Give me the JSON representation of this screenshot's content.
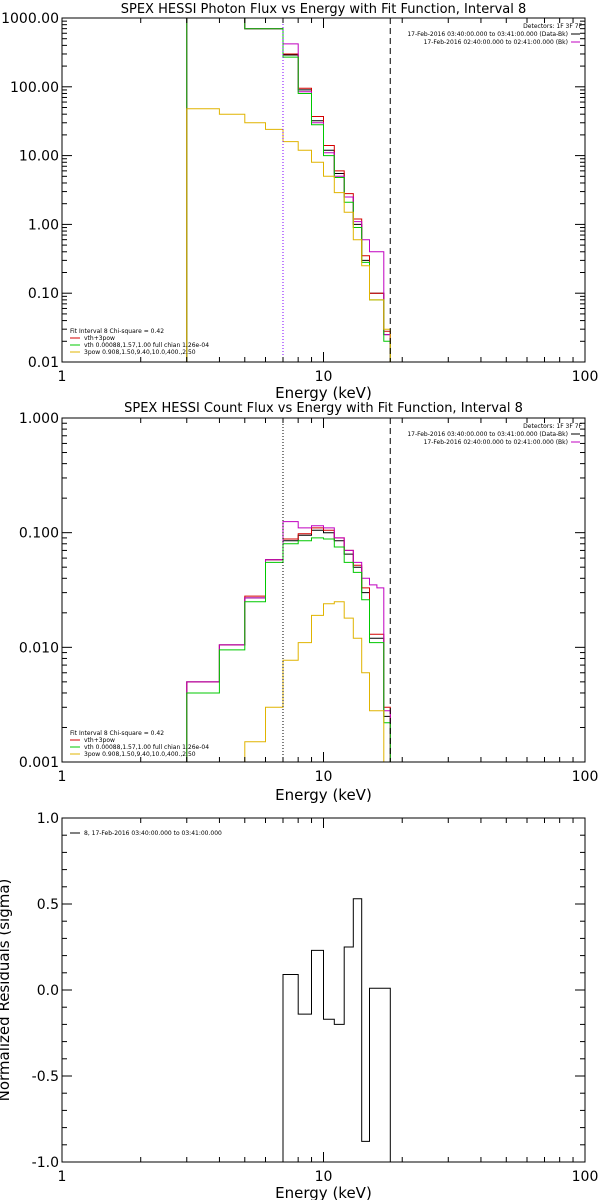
{
  "chart_data": [
    {
      "type": "line",
      "title": "SPEX HESSI Photon Flux vs Energy with Fit Function, Interval 8",
      "xlabel": "Energy (keV)",
      "ylabel": "",
      "xscale": "log",
      "yscale": "log",
      "xlim": [
        1,
        100
      ],
      "ylim": [
        0.01,
        1000
      ],
      "xticks": [
        1,
        10,
        100
      ],
      "xticklabels": [
        "1",
        "10",
        "100"
      ],
      "yticks": [
        0.01,
        0.1,
        1,
        10,
        100,
        1000
      ],
      "yticklabels": [
        "0.01",
        "0.10",
        "1.00",
        "10.00",
        "100.00",
        "1000.00"
      ],
      "header_lines": [
        "Detectors: 1F 3F 7F",
        "17-Feb-2016 03:40:00.000 to 03:41:00.000 (Data-Bk)",
        "17-Feb-2016 02:40:00.000 to 02:41:00.000 (Bk)"
      ],
      "legend_lines": [
        "Fit Interval 8   Chi-square = 0.42",
        "vth+3pow",
        "vth 0.00088,1.57,1.00  full chian 1.26e-04",
        "3pow 0.908,1.50,9.40,10.0,400.,2.50"
      ],
      "legend_colors": [
        "#000000",
        "#d40000",
        "#00c800",
        "#e0b400"
      ],
      "markers": [
        {
          "x": 7.0,
          "style": "dotted",
          "color": "#8000ff"
        },
        {
          "x": 18.0,
          "style": "dashed",
          "color": "#000000"
        }
      ],
      "series": [
        {
          "color": "#000000",
          "edges": [
            3,
            4,
            5,
            6,
            7,
            8,
            9,
            10,
            11,
            12,
            13,
            14,
            15,
            16,
            17,
            18,
            19,
            20
          ],
          "values": [
            1000,
            1000,
            700,
            700,
            290,
            90,
            32,
            12,
            5.5,
            2.5,
            1.0,
            0.3,
            0.1,
            0.1,
            0.025,
            0.01,
            0.01
          ]
        },
        {
          "color": "#d40000",
          "edges": [
            3,
            4,
            5,
            6,
            7,
            8,
            9,
            10,
            11,
            12,
            13,
            14,
            15,
            16,
            17,
            18,
            19,
            20
          ],
          "values": [
            1000,
            1000,
            700,
            700,
            300,
            95,
            37,
            14,
            6.0,
            2.8,
            1.2,
            0.35,
            0.1,
            0.1,
            0.028,
            0.01,
            0.01
          ]
        },
        {
          "color": "#c000c0",
          "edges": [
            3,
            4,
            5,
            6,
            7,
            8,
            9,
            10,
            11,
            12,
            13,
            14,
            15,
            16,
            17,
            18,
            19,
            20
          ],
          "values": [
            1000,
            1000,
            700,
            700,
            420,
            85,
            30,
            11,
            5.0,
            2.5,
            1.1,
            0.6,
            0.4,
            0.4,
            0.025,
            0.01,
            0.01
          ]
        },
        {
          "color": "#00c800",
          "edges": [
            3,
            4,
            5,
            6,
            7,
            8,
            9,
            10,
            11,
            12,
            13,
            14,
            15,
            16,
            17,
            18,
            19,
            20
          ],
          "values": [
            1000,
            1000,
            700,
            700,
            270,
            80,
            28,
            10,
            4.8,
            2.1,
            0.9,
            0.28,
            0.08,
            0.08,
            0.02,
            0.01,
            0.01
          ]
        },
        {
          "color": "#e0b400",
          "edges": [
            3,
            4,
            5,
            6,
            7,
            8,
            9,
            10,
            11,
            12,
            13,
            14,
            15,
            16,
            17,
            18,
            19,
            20
          ],
          "values": [
            48,
            40,
            30,
            24,
            16,
            12,
            8,
            5,
            2.9,
            1.5,
            0.6,
            0.25,
            0.08,
            0.08,
            0.03,
            0.01,
            0.01
          ]
        }
      ]
    },
    {
      "type": "line",
      "title": "SPEX HESSI Count Flux vs Energy with Fit Function, Interval 8",
      "xlabel": "Energy (keV)",
      "ylabel": "",
      "xscale": "log",
      "yscale": "log",
      "xlim": [
        1,
        100
      ],
      "ylim": [
        0.001,
        1
      ],
      "xticks": [
        1,
        10,
        100
      ],
      "xticklabels": [
        "1",
        "10",
        "100"
      ],
      "yticks": [
        0.001,
        0.01,
        0.1,
        1
      ],
      "yticklabels": [
        "0.001",
        "0.010",
        "0.100",
        "1.000"
      ],
      "header_lines": [
        "Detectors: 1F 3F 7F",
        "17-Feb-2016 03:40:00.000 to 03:41:00.000 (Data-Bk)",
        "17-Feb-2016 02:40:00.000 to 02:41:00.000 (Bk)"
      ],
      "legend_lines": [
        "Fit Interval 8   Chi-square = 0.42",
        "vth+3pow",
        "vth 0.00088,1.57,1.00  full chian 1.26e-04",
        "3pow 0.908,1.50,9.40,10.0,400.,2.50"
      ],
      "legend_colors": [
        "#000000",
        "#d40000",
        "#00c800",
        "#e0b400"
      ],
      "markers": [
        {
          "x": 7.0,
          "style": "dotted",
          "color": "#000000"
        },
        {
          "x": 18.0,
          "style": "dashed",
          "color": "#000000"
        }
      ],
      "series": [
        {
          "color": "#000000",
          "edges": [
            3,
            4,
            5,
            6,
            7,
            8,
            9,
            10,
            11,
            12,
            13,
            14,
            15,
            16,
            17,
            18,
            19,
            20
          ],
          "values": [
            0.005,
            0.0105,
            0.027,
            0.058,
            0.085,
            0.095,
            0.105,
            0.1,
            0.085,
            0.065,
            0.05,
            0.03,
            0.012,
            0.012,
            0.0025,
            0.001,
            0.001
          ]
        },
        {
          "color": "#d40000",
          "edges": [
            3,
            4,
            5,
            6,
            7,
            8,
            9,
            10,
            11,
            12,
            13,
            14,
            15,
            16,
            17,
            18,
            19,
            20
          ],
          "values": [
            0.005,
            0.0105,
            0.028,
            0.058,
            0.088,
            0.098,
            0.11,
            0.105,
            0.09,
            0.07,
            0.052,
            0.033,
            0.013,
            0.013,
            0.003,
            0.001,
            0.001
          ]
        },
        {
          "color": "#c000c0",
          "edges": [
            3,
            4,
            5,
            6,
            7,
            8,
            9,
            10,
            11,
            12,
            13,
            14,
            15,
            16,
            17,
            18,
            19,
            20
          ],
          "values": [
            0.005,
            0.0105,
            0.027,
            0.058,
            0.125,
            0.11,
            0.115,
            0.11,
            0.09,
            0.07,
            0.055,
            0.04,
            0.035,
            0.033,
            0.0028,
            0.001,
            0.001
          ]
        },
        {
          "color": "#00c800",
          "edges": [
            3,
            4,
            5,
            6,
            7,
            8,
            9,
            10,
            11,
            12,
            13,
            14,
            15,
            16,
            17,
            18,
            19,
            20
          ],
          "values": [
            0.004,
            0.0095,
            0.025,
            0.055,
            0.08,
            0.085,
            0.09,
            0.088,
            0.075,
            0.055,
            0.045,
            0.026,
            0.011,
            0.011,
            0.0022,
            0.001,
            0.001
          ]
        },
        {
          "color": "#e0b400",
          "edges": [
            3,
            4,
            5,
            6,
            7,
            8,
            9,
            10,
            11,
            12,
            13,
            14,
            15,
            16,
            17,
            18,
            19,
            20
          ],
          "values": [
            0.001,
            0.001,
            0.0015,
            0.003,
            0.0077,
            0.011,
            0.019,
            0.024,
            0.025,
            0.018,
            0.012,
            0.006,
            0.0028,
            0.0028,
            0.001,
            0.001,
            0.001
          ]
        }
      ]
    },
    {
      "type": "line",
      "title": "",
      "xlabel": "Energy (keV)",
      "ylabel": "Normalized Residuals (sigma)",
      "xscale": "log",
      "yscale": "linear",
      "xlim": [
        1,
        100
      ],
      "ylim": [
        -1.0,
        1.0
      ],
      "xticks": [
        1,
        10,
        100
      ],
      "xticklabels": [
        "1",
        "10",
        "100"
      ],
      "yticks": [
        -1.0,
        -0.5,
        0.0,
        0.5,
        1.0
      ],
      "yticklabels": [
        "-1.0",
        "-0.5",
        "0.0",
        "0.5",
        "1.0"
      ],
      "header_lines": [],
      "legend_lines": [
        "8, 17-Feb-2016 03:40:00.000 to 03:41:00.000"
      ],
      "legend_colors": [
        "#000000"
      ],
      "markers": [],
      "series": [
        {
          "color": "#000000",
          "edges": [
            7,
            8,
            9,
            10,
            11,
            12,
            13,
            14,
            15,
            16,
            17,
            18
          ],
          "values": [
            0.09,
            -0.14,
            0.23,
            -0.17,
            -0.2,
            0.25,
            0.53,
            -0.88,
            0.01,
            0.01,
            0.01
          ]
        }
      ]
    }
  ]
}
